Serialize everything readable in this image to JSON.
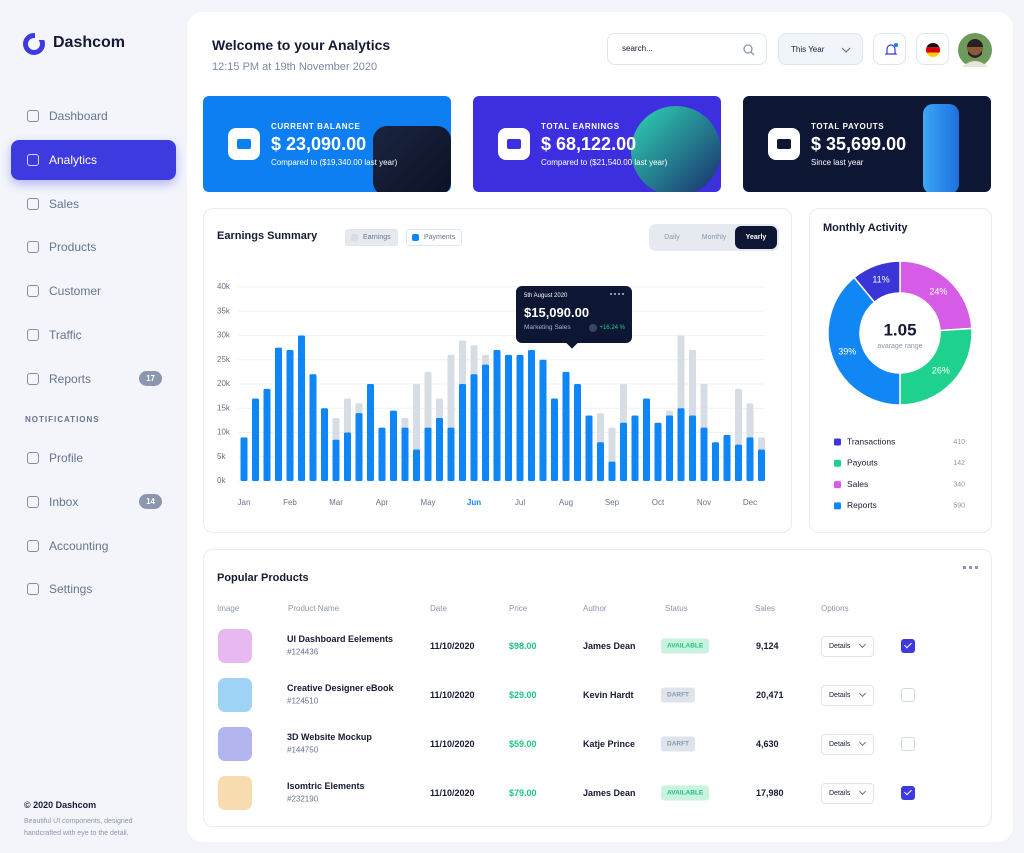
{
  "brand": "Dashcom",
  "sidebar": {
    "items": [
      {
        "label": "Dashboard"
      },
      {
        "label": "Analytics",
        "active": true
      },
      {
        "label": "Sales"
      },
      {
        "label": "Products"
      },
      {
        "label": "Customer"
      },
      {
        "label": "Traffic"
      },
      {
        "label": "Reports",
        "badge": 17
      }
    ],
    "section": "NOTIFICATIONS",
    "items2": [
      {
        "label": "Profile"
      },
      {
        "label": "Inbox",
        "badge": 14
      },
      {
        "label": "Accounting"
      },
      {
        "label": "Settings"
      }
    ]
  },
  "footer": {
    "title": "© 2020 Dashcom",
    "text": "Beautiful UI components, designed handcrafted with eye to the detail."
  },
  "header": {
    "title": "Welcome to your Analytics",
    "subtitle": "12:15 PM at 19th November 2020",
    "search_placeholder": "search...",
    "period": "This Year"
  },
  "cards": [
    {
      "label": "CURRENT BALANCE",
      "value": "$ 23,090.00",
      "note": "Compared to ($19,340.00 last year)",
      "color": "#0d7ff2"
    },
    {
      "label": "TOTAL EARNINGS",
      "value": "$ 68,122.00",
      "note": "Compared to ($21,540.00 last year)",
      "color": "#3d2fe0"
    },
    {
      "label": "TOTAL PAYOUTS",
      "value": "$ 35,699.00",
      "note": "Since last year",
      "color": "#0d1633"
    }
  ],
  "chart_data": [
    {
      "type": "bar",
      "title": "Earnings Summary",
      "categories": [
        "Jan",
        null,
        null,
        null,
        "Feb",
        null,
        null,
        null,
        "Mar",
        null,
        null,
        null,
        "Apr",
        null,
        null,
        null,
        "May",
        null,
        null,
        null,
        "Jun",
        null,
        null,
        null,
        "Jul",
        null,
        null,
        null,
        "Aug",
        null,
        null,
        null,
        "Sep",
        null,
        null,
        null,
        "Oct",
        null,
        null,
        null,
        "Nov",
        null,
        null,
        null,
        "Dec",
        null
      ],
      "series": [
        {
          "name": "Earnings",
          "color": "#d7dde5",
          "values": [
            null,
            null,
            null,
            null,
            null,
            null,
            null,
            null,
            13,
            17,
            16,
            null,
            null,
            null,
            13,
            20,
            22.5,
            17,
            26,
            29,
            28,
            26,
            null,
            null,
            null,
            null,
            null,
            null,
            null,
            null,
            null,
            14,
            11,
            20,
            null,
            null,
            null,
            14.5,
            30,
            27,
            20,
            null,
            null,
            19,
            16,
            9
          ]
        },
        {
          "name": "Payments",
          "color": "#0f86f5",
          "values": [
            9,
            17,
            19,
            27.5,
            27,
            30,
            22,
            15,
            8.5,
            10,
            14,
            20,
            11,
            14.5,
            11,
            6.5,
            11,
            13,
            11,
            20,
            22,
            24,
            27,
            26,
            26,
            27,
            25,
            17,
            22.5,
            20,
            13.5,
            8,
            4,
            12,
            13.5,
            17,
            12,
            13.5,
            15,
            13.5,
            11,
            8,
            9.5,
            7.5,
            9,
            6.5
          ]
        }
      ],
      "ylim": [
        0,
        40
      ],
      "yticks": [
        {
          "value": 0,
          "label": "0k"
        },
        {
          "value": 5,
          "label": "5k"
        },
        {
          "value": 10,
          "label": "10k"
        },
        {
          "value": 15,
          "label": "15k"
        },
        {
          "value": 20,
          "label": "20k"
        },
        {
          "value": 25,
          "label": "25k"
        },
        {
          "value": 30,
          "label": "30k"
        },
        {
          "value": 35,
          "label": "35k"
        },
        {
          "value": 40,
          "label": "40k"
        }
      ],
      "grid": true,
      "tabs": [
        "Daily",
        "Monthly",
        "Yearly"
      ],
      "active_tab": 2,
      "active_category": 20,
      "tooltip": {
        "date": "5th August 2020",
        "value": "$15,090.00",
        "label": "Marketing Sales",
        "change": "+16.24 %"
      }
    },
    {
      "type": "pie",
      "title": "Monthly Activity",
      "values": [
        24,
        26,
        39,
        11
      ],
      "value_labels": [
        "24%",
        "26%",
        "39%",
        "11%"
      ],
      "colors": [
        "#d65ce8",
        "#1fd18f",
        "#1186f5",
        "#3b34d6"
      ],
      "center_value": "1.05",
      "center_label": "avarage range",
      "legend": [
        {
          "name": "Transactions",
          "color": "#3b34d6",
          "count": 410
        },
        {
          "name": "Payouts",
          "color": "#1fd18f",
          "count": 142
        },
        {
          "name": "Sales",
          "color": "#d65ce8",
          "count": 340
        },
        {
          "name": "Reports",
          "color": "#1186f5",
          "count": 590
        }
      ]
    }
  ],
  "popular_products": {
    "title": "Popular Products",
    "columns": [
      "Image",
      "Product Name",
      "Date",
      "Price",
      "Author",
      "Status",
      "Sales",
      "Options"
    ],
    "rows": [
      {
        "name": "UI Dashboard Eelements",
        "id": "#124436",
        "date": "11/10/2020",
        "price": "$98.00",
        "author": "James Dean",
        "status": "AVAILABLE",
        "sales": "9,124",
        "option": "Details",
        "checked": true,
        "thumb": "#e7b9f0"
      },
      {
        "name": "Creative Designer eBook",
        "id": "#124510",
        "date": "11/10/2020",
        "price": "$29.00",
        "author": "Kevin Hardt",
        "status": "DARFT",
        "sales": "20,471",
        "option": "Details",
        "checked": false,
        "thumb": "#9fd3f5"
      },
      {
        "name": "3D Website Mockup",
        "id": "#144750",
        "date": "11/10/2020",
        "price": "$59.00",
        "author": "Katje Prince",
        "status": "DARFT",
        "sales": "4,630",
        "option": "Details",
        "checked": false,
        "thumb": "#b3b5ee"
      },
      {
        "name": "Isomtric Elements",
        "id": "#232190",
        "date": "11/10/2020",
        "price": "$79.00",
        "author": "James Dean",
        "status": "AVAILABLE",
        "sales": "17,980",
        "option": "Details",
        "checked": true,
        "thumb": "#f7dcb0"
      }
    ]
  }
}
